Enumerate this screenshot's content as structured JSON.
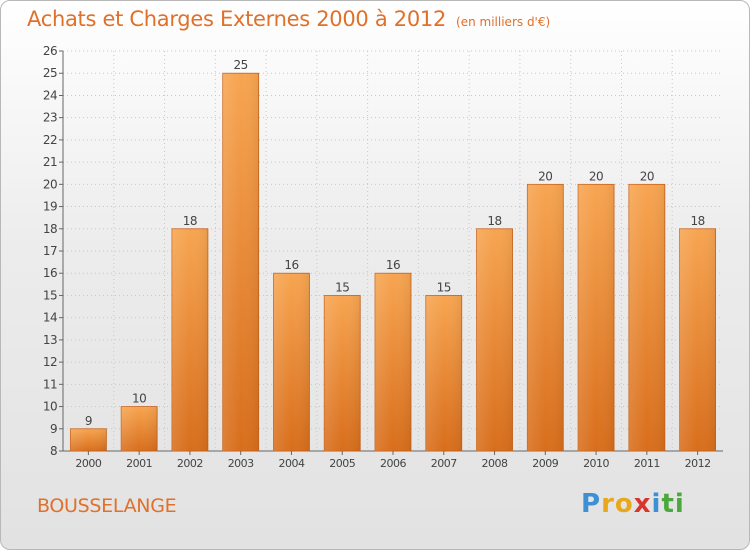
{
  "header": {
    "title": "Achats et Charges Externes 2000 à 2012",
    "subtitle": "(en milliers d'€)"
  },
  "footer": {
    "commune": "BOUSSELANGE",
    "logo": {
      "letters": [
        "P",
        "r",
        "o",
        "x",
        "i",
        "t",
        "i"
      ],
      "colors": [
        "#3d8fd6",
        "#e9a81c",
        "#e9a81c",
        "#d8352b",
        "#3d8fd6",
        "#4aa83c",
        "#4aa83c"
      ]
    }
  },
  "chart_data": {
    "type": "bar",
    "categories": [
      "2000",
      "2001",
      "2002",
      "2003",
      "2004",
      "2005",
      "2006",
      "2007",
      "2008",
      "2009",
      "2010",
      "2011",
      "2012"
    ],
    "values": [
      9,
      10,
      18,
      25,
      16,
      15,
      16,
      15,
      18,
      20,
      20,
      20,
      18
    ],
    "title": "Achats et Charges Externes 2000 à 2012",
    "subtitle": "(en milliers d'€)",
    "xlabel": "",
    "ylabel": "",
    "ylim": [
      8,
      26
    ],
    "yticks": [
      8,
      9,
      10,
      11,
      12,
      13,
      14,
      15,
      16,
      17,
      18,
      19,
      20,
      21,
      22,
      23,
      24,
      25,
      26
    ],
    "grid": true,
    "data_labels": true,
    "bar_color": "#f39a45"
  }
}
